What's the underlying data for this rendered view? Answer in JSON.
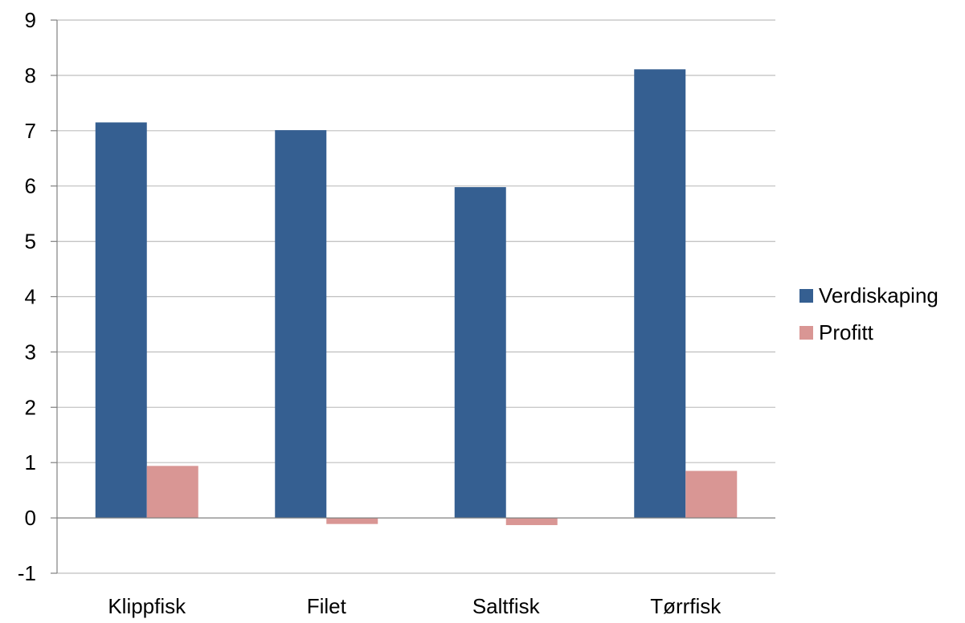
{
  "chart_data": {
    "type": "bar",
    "title": "",
    "xlabel": "",
    "ylabel": "",
    "categories": [
      "Klippfisk",
      "Filet",
      "Saltfisk",
      "Tørrfisk"
    ],
    "series": [
      {
        "name": "Verdiskaping",
        "color": "#355F91",
        "values": [
          7.15,
          7.01,
          5.98,
          8.11
        ]
      },
      {
        "name": "Profitt",
        "color": "#D99694",
        "values": [
          0.94,
          -0.11,
          -0.13,
          0.85
        ]
      }
    ],
    "ylim": [
      -1,
      9
    ],
    "yticks": [
      "-1",
      "0",
      "1",
      "2",
      "3",
      "4",
      "5",
      "6",
      "7",
      "8",
      "9"
    ],
    "grid": true,
    "legend_position": "right",
    "gridline_color": "#BFBFBF",
    "axis_color": "#808080"
  }
}
